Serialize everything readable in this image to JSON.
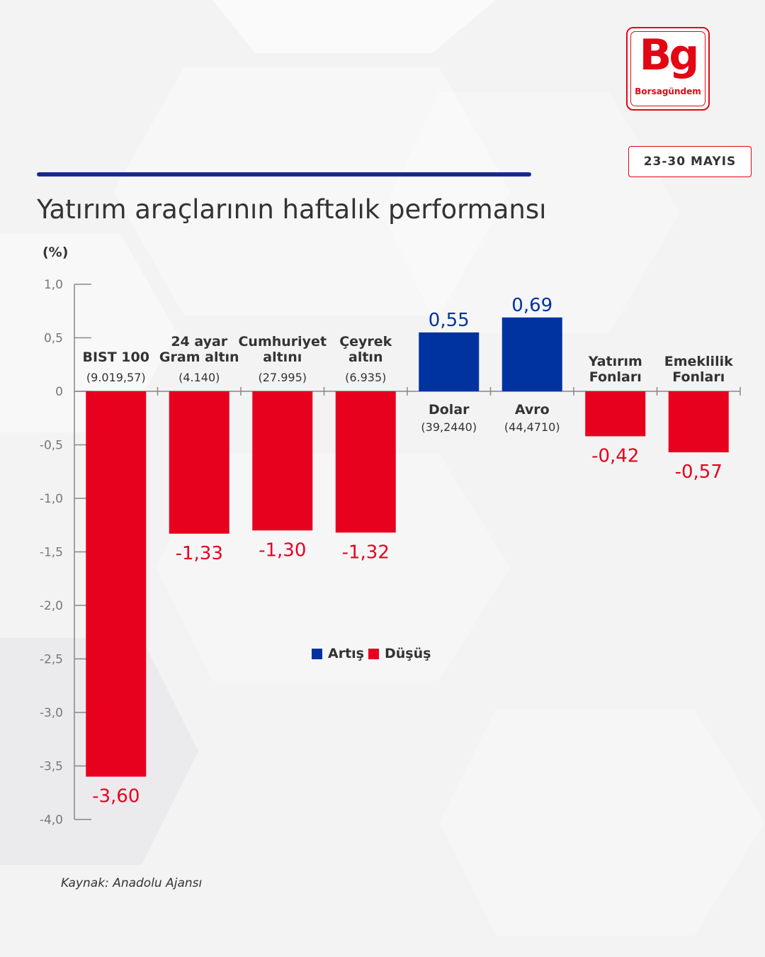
{
  "brand": {
    "mark": "Bg",
    "name": "Borsagündem",
    "color": "#e30613"
  },
  "date_range": "23-30 MAYIS",
  "title": "Yatırım araçlarının haftalık performansı",
  "unit_label": "(%)",
  "legend": [
    {
      "label": "Artış",
      "color": "#0033a0"
    },
    {
      "label": "Düşüş",
      "color": "#e8001f"
    }
  ],
  "source": "Kaynak: Anadolu Ajansı",
  "chart_data": {
    "type": "bar",
    "ylim": [
      -4.0,
      1.0
    ],
    "yticks": [
      {
        "value": 1.0,
        "label": "1,0"
      },
      {
        "value": 0.5,
        "label": "0,5"
      },
      {
        "value": 0,
        "label": "0"
      },
      {
        "value": -0.5,
        "label": "-0,5"
      },
      {
        "value": -1.0,
        "label": "-1,0"
      },
      {
        "value": -1.5,
        "label": "-1,5"
      },
      {
        "value": -2.0,
        "label": "-2,0"
      },
      {
        "value": -2.5,
        "label": "-2,5"
      },
      {
        "value": -3.0,
        "label": "-3,0"
      },
      {
        "value": -3.5,
        "label": "-3,5"
      },
      {
        "value": -4.0,
        "label": "-4,0"
      }
    ],
    "bars": [
      {
        "name": [
          "BIST 100"
        ],
        "sub": "(9.019,57)",
        "value": -3.6,
        "label": "-3,60"
      },
      {
        "name": [
          "24 ayar",
          "Gram altın"
        ],
        "sub": "(4.140)",
        "value": -1.33,
        "label": "-1,33"
      },
      {
        "name": [
          "Cumhuriyet",
          "altını"
        ],
        "sub": "(27.995)",
        "value": -1.3,
        "label": "-1,30"
      },
      {
        "name": [
          "Çeyrek",
          "altın"
        ],
        "sub": "(6.935)",
        "value": -1.32,
        "label": "-1,32"
      },
      {
        "name": [
          "Dolar"
        ],
        "sub": "(39,2440)",
        "value": 0.55,
        "label": "0,55"
      },
      {
        "name": [
          "Avro"
        ],
        "sub": "(44,4710)",
        "value": 0.69,
        "label": "0,69"
      },
      {
        "name": [
          "Yatırım",
          "Fonları"
        ],
        "sub": "",
        "value": -0.42,
        "label": "-0,42"
      },
      {
        "name": [
          "Emeklilik",
          "Fonları"
        ],
        "sub": "",
        "value": -0.57,
        "label": "-0,57"
      }
    ],
    "colors": {
      "positive": "#0033a0",
      "negative": "#e8001f"
    }
  }
}
